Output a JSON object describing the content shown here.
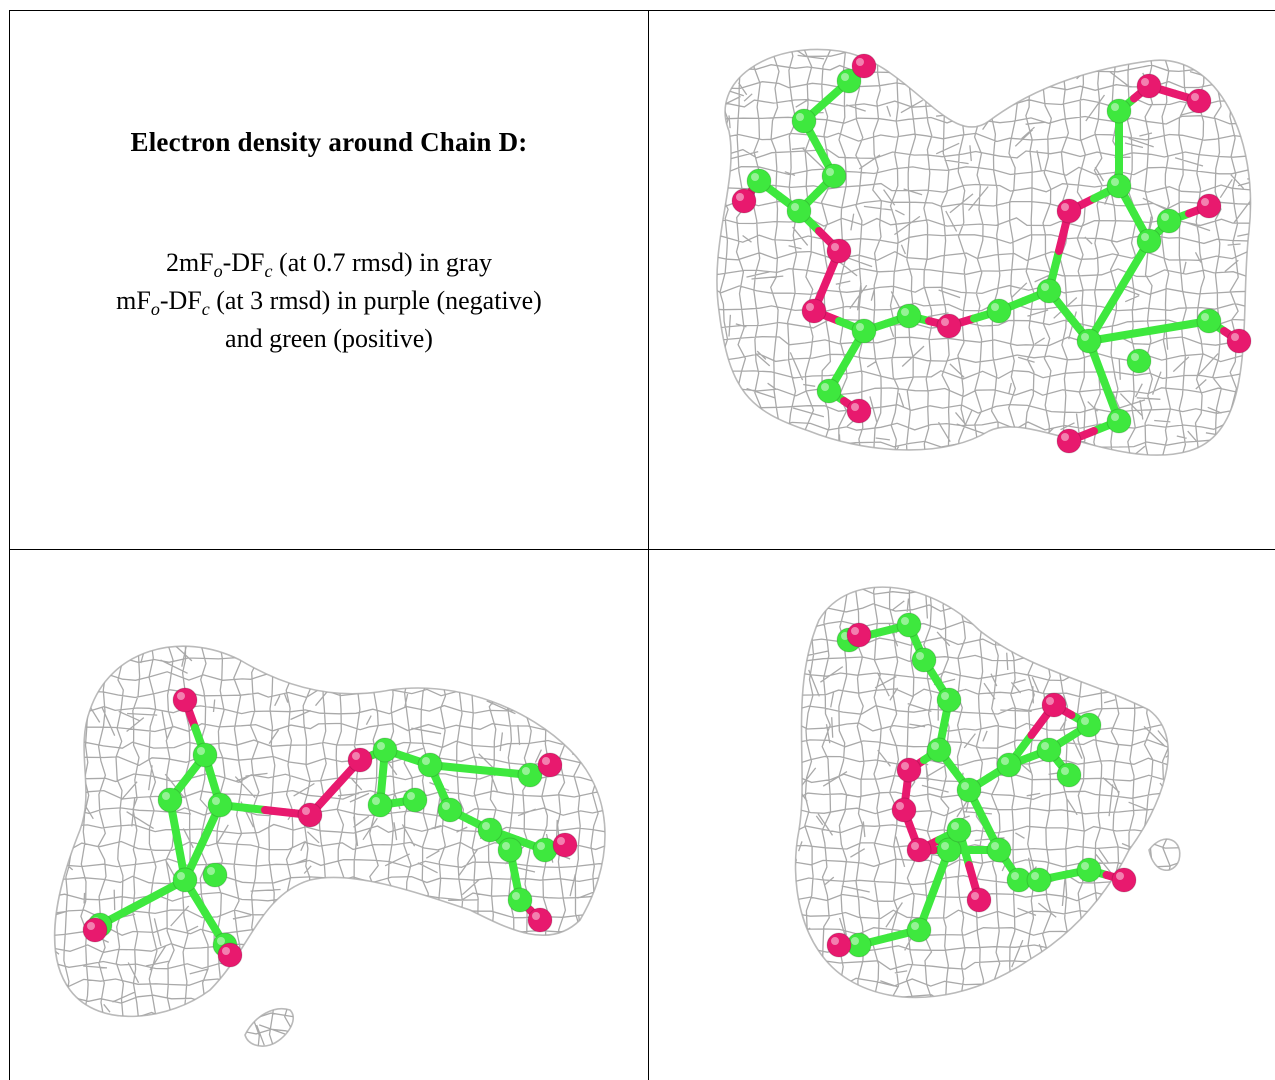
{
  "caption": {
    "title": "Electron density around Chain D:",
    "line1": {
      "prefix": "2mF",
      "sub1": "o",
      "mid": "-DF",
      "sub2": "c",
      "suffix": " (at 0.7 rmsd) in gray"
    },
    "line2": {
      "prefix": "mF",
      "sub1": "o",
      "mid": "-DF",
      "sub2": "c",
      "suffix": " (at 3 rmsd) in purple (negative)"
    },
    "line3": "and green (positive)"
  },
  "colors": {
    "mesh": "#a9a9a9",
    "carbon": "#3ee83e",
    "oxygen": "#e8196e",
    "border": "#000000"
  },
  "panels": [
    {
      "name": "view-top-right",
      "contents": "density mesh with disaccharide model"
    },
    {
      "name": "view-bottom-left",
      "contents": "density mesh with disaccharide model"
    },
    {
      "name": "view-bottom-right",
      "contents": "density mesh with disaccharide model"
    }
  ]
}
